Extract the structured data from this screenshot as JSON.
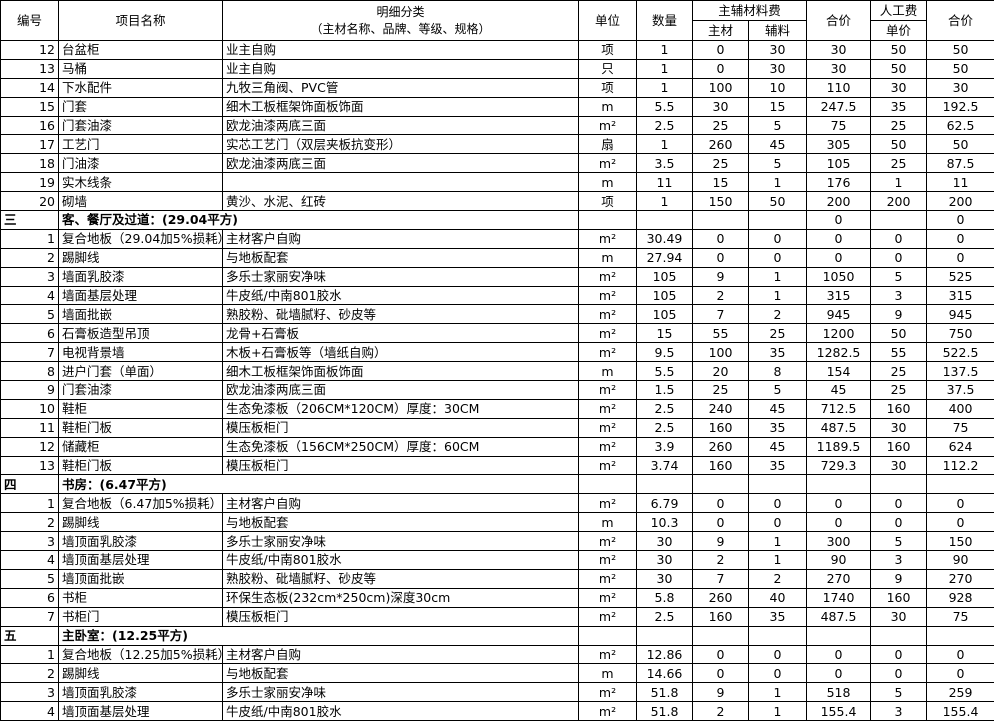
{
  "header": {
    "no": "编号",
    "item": "项目名称",
    "detail": "明细分类",
    "detail_sub": "（主材名称、品牌、等级、规格）",
    "unit": "单位",
    "qty": "数量",
    "material": "主辅材料费",
    "main": "主材",
    "aux": "辅料",
    "mat_total": "合价",
    "labor": "人工费",
    "labor_price": "单价",
    "labor_total": "合价"
  },
  "rows": [
    [
      12,
      "台盆柜",
      "业主自购",
      "项",
      1,
      0,
      30,
      30,
      50,
      50
    ],
    [
      13,
      "马桶",
      "业主自购",
      "只",
      1,
      0,
      30,
      30,
      50,
      50
    ],
    [
      14,
      "下水配件",
      "九牧三角阀、PVC管",
      "项",
      1,
      100,
      10,
      110,
      30,
      30
    ],
    [
      15,
      "门套",
      "细木工板框架饰面板饰面",
      "m",
      5.5,
      30,
      15,
      247.5,
      35,
      192.5
    ],
    [
      16,
      "门套油漆",
      "欧龙油漆两底三面",
      "m²",
      2.5,
      25,
      5,
      75,
      25,
      62.5
    ],
    [
      17,
      "工艺门",
      "实芯工艺门（双层夹板抗变形）",
      "扇",
      1,
      260,
      45,
      305,
      50,
      50
    ],
    [
      18,
      "门油漆",
      "欧龙油漆两底三面",
      "m²",
      3.5,
      25,
      5,
      105,
      25,
      87.5
    ],
    [
      19,
      "实木线条",
      null,
      "m",
      11,
      15,
      1,
      176,
      1,
      11
    ],
    [
      20,
      "砌墙",
      "黄沙、水泥、红砖",
      "项",
      1,
      150,
      50,
      200,
      200,
      200
    ],
    {
      "no": "三",
      "title": "客、餐厅及过道：(29.04平方)",
      "mat_total": 0,
      "labor_total": 0
    },
    [
      1,
      "复合地板（29.04加5%损耗）",
      "主材客户自购",
      "m²",
      30.49,
      0,
      0,
      0,
      0,
      0
    ],
    [
      2,
      "踢脚线",
      "与地板配套",
      "m",
      27.94,
      0,
      0,
      0,
      0,
      0
    ],
    [
      3,
      "墙面乳胶漆",
      "多乐士家丽安净味",
      "m²",
      105,
      9,
      1,
      1050,
      5,
      525
    ],
    [
      4,
      "墙面基层处理",
      "牛皮纸/中南801胶水",
      "m²",
      105,
      2,
      1,
      315,
      3,
      315
    ],
    [
      5,
      "墙面批嵌",
      "熟胶粉、砒墙腻籽、砂皮等",
      "m²",
      105,
      7,
      2,
      945,
      9,
      945
    ],
    [
      6,
      "石膏板造型吊顶",
      "龙骨+石膏板",
      "m²",
      15,
      55,
      25,
      1200,
      50,
      750
    ],
    [
      7,
      "电视背景墙",
      "木板+石膏板等（墙纸自购）",
      "m²",
      9.5,
      100,
      35,
      1282.5,
      55,
      522.5
    ],
    [
      8,
      "进户门套（单面）",
      "细木工板框架饰面板饰面",
      "m",
      5.5,
      20,
      8,
      154,
      25,
      137.5
    ],
    [
      9,
      "门套油漆",
      "欧龙油漆两底三面",
      "m²",
      1.5,
      25,
      5,
      45,
      25,
      37.5
    ],
    [
      10,
      "鞋柜",
      "生态免漆板（206CM*120CM）厚度：30CM",
      "m²",
      2.5,
      240,
      45,
      712.5,
      160,
      400
    ],
    [
      11,
      "鞋柜门板",
      "模压板柜门",
      "m²",
      2.5,
      160,
      35,
      487.5,
      30,
      75
    ],
    [
      12,
      "储藏柜",
      "生态免漆板（156CM*250CM）厚度：60CM",
      "m²",
      3.9,
      260,
      45,
      1189.5,
      160,
      624
    ],
    [
      13,
      "鞋柜门板",
      "模压板柜门",
      "m²",
      3.74,
      160,
      35,
      729.3,
      30,
      112.2
    ],
    {
      "no": "四",
      "title": "书房：(6.47平方)"
    },
    [
      1,
      "复合地板（6.47加5%损耗）",
      "主材客户自购",
      "m²",
      6.79,
      0,
      0,
      0,
      0,
      0
    ],
    [
      2,
      "踢脚线",
      "与地板配套",
      "m",
      10.3,
      0,
      0,
      0,
      0,
      0
    ],
    [
      3,
      "墙顶面乳胶漆",
      "多乐士家丽安净味",
      "m²",
      30,
      9,
      1,
      300,
      5,
      150
    ],
    [
      4,
      "墙顶面基层处理",
      "牛皮纸/中南801胶水",
      "m²",
      30,
      2,
      1,
      90,
      3,
      90
    ],
    [
      5,
      "墙顶面批嵌",
      "熟胶粉、砒墙腻籽、砂皮等",
      "m²",
      30,
      7,
      2,
      270,
      9,
      270
    ],
    [
      6,
      "书柜",
      "环保生态板(232cm*250cm)深度30cm",
      "m²",
      5.8,
      260,
      40,
      1740,
      160,
      928
    ],
    [
      7,
      "书柜门",
      "模压板柜门",
      "m²",
      2.5,
      160,
      35,
      487.5,
      30,
      75
    ],
    {
      "no": "五",
      "title": "主卧室：(12.25平方)"
    },
    [
      1,
      "复合地板（12.25加5%损耗）",
      "主材客户自购",
      "m²",
      12.86,
      0,
      0,
      0,
      0,
      0
    ],
    [
      2,
      "踢脚线",
      "与地板配套",
      "m",
      14.66,
      0,
      0,
      0,
      0,
      0
    ],
    [
      3,
      "墙顶面乳胶漆",
      "多乐士家丽安净味",
      "m²",
      51.8,
      9,
      1,
      518,
      5,
      259
    ],
    [
      4,
      "墙顶面基层处理",
      "牛皮纸/中南801胶水",
      "m²",
      51.8,
      2,
      1,
      155.4,
      3,
      155.4
    ]
  ]
}
